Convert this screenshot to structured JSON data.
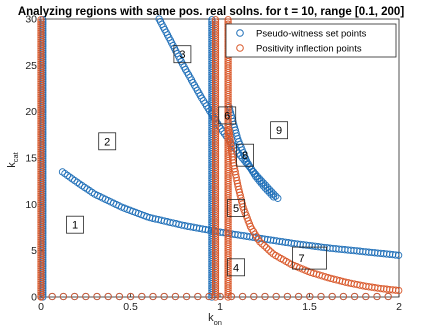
{
  "chart_data": {
    "type": "scatter",
    "title": "Analyzing regions with same pos. real solns. for t = 10, range [0.1, 200]",
    "xlabel": "k",
    "xlabel_sub": "on",
    "ylabel": "k",
    "ylabel_sub": "cat",
    "xlim": [
      0,
      2
    ],
    "ylim": [
      0,
      30
    ],
    "xticks": [
      "0",
      "0.5",
      "1",
      "1.5",
      "2"
    ],
    "yticks": [
      "0",
      "5",
      "10",
      "15",
      "20",
      "25",
      "30"
    ],
    "grid": false,
    "legend_position": "top-right",
    "series": [
      {
        "name": "Pseudo-witness set points",
        "color": "#1f6fb8",
        "segments": [
          {
            "kind": "vertical",
            "x": 0.01,
            "y_from": 0,
            "y_to": 30
          },
          {
            "kind": "vertical",
            "x": 0.955,
            "y_from": 0,
            "y_to": 30
          },
          {
            "kind": "horizontal",
            "y": 0.05,
            "x_from": 0,
            "x_to": 2
          },
          {
            "kind": "curve",
            "points": [
              [
                0.12,
                13.5
              ],
              [
                0.2,
                12.4
              ],
              [
                0.3,
                11.1
              ],
              [
                0.45,
                9.7
              ],
              [
                0.6,
                8.6
              ],
              [
                0.8,
                7.7
              ],
              [
                1.0,
                7.0
              ],
              [
                1.2,
                6.4
              ],
              [
                1.4,
                5.8
              ],
              [
                1.6,
                5.3
              ],
              [
                1.8,
                4.9
              ],
              [
                2.0,
                4.5
              ]
            ]
          },
          {
            "kind": "curve",
            "points": [
              [
                0.66,
                30.0
              ],
              [
                0.72,
                27.8
              ],
              [
                0.8,
                24.8
              ],
              [
                0.9,
                21.4
              ],
              [
                1.0,
                18.3
              ],
              [
                1.1,
                15.6
              ],
              [
                1.2,
                13.2
              ],
              [
                1.3,
                11.1
              ],
              [
                1.33,
                10.5
              ]
            ]
          },
          {
            "kind": "curve",
            "points": [
              [
                1.05,
                20.5
              ],
              [
                1.1,
                17.0
              ],
              [
                1.15,
                14.6
              ],
              [
                1.2,
                13.0
              ],
              [
                1.25,
                11.8
              ],
              [
                1.3,
                10.8
              ]
            ]
          }
        ]
      },
      {
        "name": "Positivity inflection points",
        "color": "#d9582a",
        "segments": [
          {
            "kind": "vertical",
            "x": 0.0,
            "y_from": 0,
            "y_to": 30
          },
          {
            "kind": "vertical",
            "x": 0.975,
            "y_from": 0,
            "y_to": 30
          },
          {
            "kind": "vertical",
            "x": 1.045,
            "y_from": 0,
            "y_to": 30
          },
          {
            "kind": "horizontal",
            "y": 0.05,
            "x_from": 0,
            "x_to": 2
          },
          {
            "kind": "curve",
            "points": [
              [
                1.05,
                18.0
              ],
              [
                1.07,
                15.0
              ],
              [
                1.1,
                12.0
              ],
              [
                1.13,
                9.6
              ],
              [
                1.17,
                7.6
              ],
              [
                1.22,
                6.0
              ],
              [
                1.3,
                4.6
              ],
              [
                1.4,
                3.5
              ],
              [
                1.5,
                2.7
              ],
              [
                1.6,
                2.1
              ],
              [
                1.7,
                1.6
              ],
              [
                1.8,
                1.2
              ],
              [
                1.9,
                0.9
              ],
              [
                2.0,
                0.7
              ]
            ]
          }
        ]
      }
    ],
    "region_labels": [
      {
        "text": "1",
        "x": 0.19,
        "y": 7.8
      },
      {
        "text": "2",
        "x": 0.37,
        "y": 16.8
      },
      {
        "text": "3",
        "x": 0.79,
        "y": 26.2
      },
      {
        "text": "4",
        "x": 1.09,
        "y": 3.2
      },
      {
        "text": "5",
        "x": 1.09,
        "y": 9.6
      },
      {
        "text": "6",
        "x": 1.04,
        "y": 19.6
      },
      {
        "text": "7",
        "x": 1.5,
        "y": 4.2
      },
      {
        "text": "8",
        "x": 1.14,
        "y": 15.3
      },
      {
        "text": "9",
        "x": 1.33,
        "y": 18.0
      }
    ]
  }
}
